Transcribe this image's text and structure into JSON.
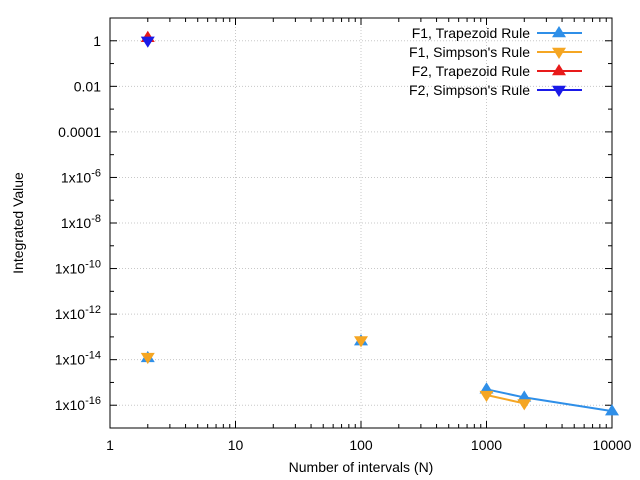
{
  "chart_data": {
    "type": "scatter",
    "xlabel": "Number of intervals (N)",
    "ylabel": "Integrated Value",
    "xscale": "log",
    "yscale": "log",
    "xlim": [
      1,
      10000
    ],
    "ylim": [
      1e-17,
      10
    ],
    "grid": true,
    "legend_position": "top-right",
    "x_ticks": [
      {
        "value": 1,
        "label": "1"
      },
      {
        "value": 10,
        "label": "10"
      },
      {
        "value": 100,
        "label": "100"
      },
      {
        "value": 1000,
        "label": "1000"
      },
      {
        "value": 10000,
        "label": "10000"
      }
    ],
    "y_ticks": [
      {
        "value": 1,
        "base": "1",
        "exp": ""
      },
      {
        "value": 0.01,
        "base": "0.01",
        "exp": ""
      },
      {
        "value": 0.0001,
        "base": "0.0001",
        "exp": ""
      },
      {
        "value": 1e-06,
        "base": "1x10",
        "exp": "-6"
      },
      {
        "value": 1e-08,
        "base": "1x10",
        "exp": "-8"
      },
      {
        "value": 1e-10,
        "base": "1x10",
        "exp": "-10"
      },
      {
        "value": 1e-12,
        "base": "1x10",
        "exp": "-12"
      },
      {
        "value": 1e-14,
        "base": "1x10",
        "exp": "-14"
      },
      {
        "value": 1e-16,
        "base": "1x10",
        "exp": "-16"
      }
    ],
    "series": [
      {
        "name": "F1, Trapezoid Rule",
        "color": "#2f8fe8",
        "marker": "triangle-up",
        "points": [
          [
            2,
            1.2e-14
          ],
          [
            100,
            6.5e-14
          ],
          [
            1000,
            5e-16
          ],
          [
            2000,
            2.2e-16
          ],
          [
            10000,
            5.5e-17
          ]
        ],
        "line_from": 2
      },
      {
        "name": "F1, Simpson's Rule",
        "color": "#f5a623",
        "marker": "triangle-down",
        "points": [
          [
            2,
            1.3e-14
          ],
          [
            100,
            7e-14
          ],
          [
            1000,
            2.8e-16
          ],
          [
            2000,
            1.2e-16
          ]
        ],
        "line_from": 2
      },
      {
        "name": "F2, Trapezoid Rule",
        "color": "#e81a1a",
        "marker": "triangle-up",
        "points": [
          [
            2,
            1.35
          ]
        ],
        "line_from": 0
      },
      {
        "name": "F2, Simpson's Rule",
        "color": "#1a1ae8",
        "marker": "triangle-down",
        "points": [
          [
            2,
            1.0
          ]
        ],
        "line_from": 0
      }
    ]
  }
}
